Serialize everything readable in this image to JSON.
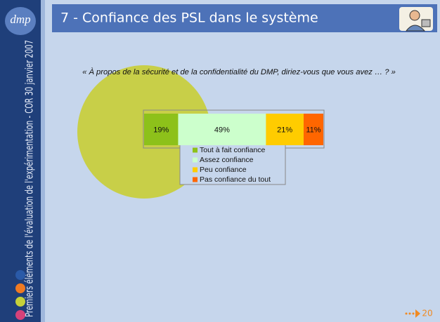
{
  "slide": {
    "logo": "dmp",
    "title": "7 - Confiance des PSL dans le système",
    "sidebar": "Premiers éléments de l'évaluation de l'expérimentation - COR 30 janvier 2007",
    "page_number": "20"
  },
  "chart_data": {
    "type": "bar",
    "stacked": true,
    "orientation": "horizontal",
    "title": "« À propos de la sécurité et de la confidentialité du DMP, diriez-vous que vous avez … ? »",
    "series": [
      {
        "name": "Tout à fait confiance",
        "color": "#8dc11a",
        "values": [
          19
        ],
        "value_labels": [
          "19%"
        ]
      },
      {
        "name": "Assez confiance",
        "color": "#ccffcc",
        "values": [
          49
        ],
        "value_labels": [
          "49%"
        ]
      },
      {
        "name": "Peu confiance",
        "color": "#ffcc00",
        "values": [
          21
        ],
        "value_labels": [
          "21%"
        ]
      },
      {
        "name": "Pas confiance du tout",
        "color": "#ff6600",
        "values": [
          11
        ],
        "value_labels": [
          "11%"
        ]
      }
    ]
  }
}
